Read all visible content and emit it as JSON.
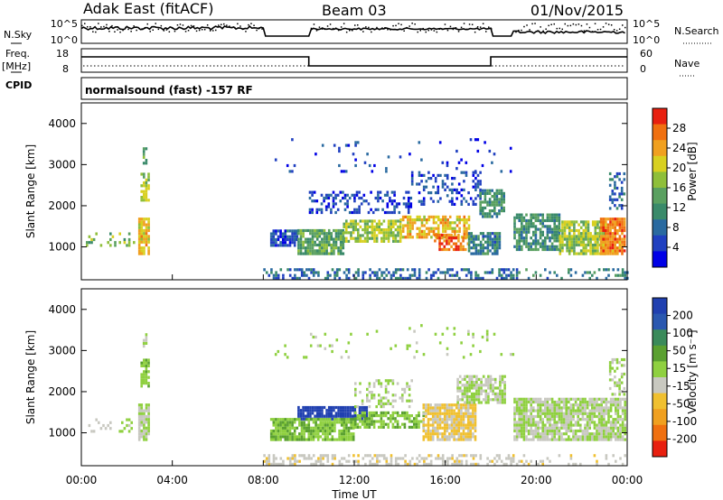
{
  "header": {
    "station": "Adak East (fitACF)",
    "beam": "Beam 03",
    "date": "01/Nov/2015",
    "nsky_label": "N.Sky",
    "nsearch_label": "N.Search",
    "freq_label": "Freq.",
    "freq_unit": "[MHz]",
    "nave_label": "Nave",
    "cpid_label": "CPID",
    "cpid_value": "normalsound (fast) -157 RF",
    "noise_ticks_left": [
      "10^5",
      "10^0"
    ],
    "noise_ticks_right": [
      "10^5",
      "10^0"
    ],
    "freq_ticks_left": [
      "18",
      "8"
    ],
    "nave_ticks_right": [
      "60",
      "0"
    ]
  },
  "colors": {
    "power_scale": [
      "#0000e6",
      "#2040c0",
      "#2a6aa0",
      "#3a8a6a",
      "#5aa060",
      "#8fbf3a",
      "#d8d020",
      "#f0a020",
      "#f07010",
      "#e82010"
    ],
    "velocity_scale": [
      "#2040b0",
      "#2a58b0",
      "#3a8a5a",
      "#5aa030",
      "#8fd040",
      "#c8c8c0",
      "#f0c030",
      "#f0a020",
      "#f07010",
      "#e82010"
    ]
  },
  "chart_data": [
    {
      "type": "heatmap",
      "parameter": "Power",
      "ylabel": "Slant Range [km]",
      "ylim": [
        200,
        4500
      ],
      "yticks": [
        "1000",
        "2000",
        "3000",
        "4000"
      ],
      "colorbar_label": "Power [dB]",
      "colorbar_ticks": [
        "4",
        "8",
        "12",
        "16",
        "20",
        "24",
        "28"
      ],
      "colorbar_range": [
        0,
        32
      ],
      "regions": [
        {
          "t0": 0.2,
          "t1": 2.3,
          "r0": 1000,
          "r1": 1300,
          "v": 16,
          "d": 0.25
        },
        {
          "t0": 2.5,
          "t1": 3.0,
          "r0": 800,
          "r1": 1700,
          "v": 22,
          "d": 0.9
        },
        {
          "t0": 2.6,
          "t1": 2.95,
          "r0": 2100,
          "r1": 2800,
          "v": 18,
          "d": 0.7
        },
        {
          "t0": 2.7,
          "t1": 2.9,
          "r0": 3000,
          "r1": 3400,
          "v": 14,
          "d": 0.5
        },
        {
          "t0": 8.3,
          "t1": 9.5,
          "r0": 1000,
          "r1": 1400,
          "v": 6,
          "d": 0.8
        },
        {
          "t0": 9.5,
          "t1": 11.5,
          "r0": 800,
          "r1": 1400,
          "v": 14,
          "d": 0.85
        },
        {
          "t0": 11.5,
          "t1": 14.0,
          "r0": 1100,
          "r1": 1600,
          "v": 18,
          "d": 0.75
        },
        {
          "t0": 10.0,
          "t1": 14.5,
          "r0": 1800,
          "r1": 2300,
          "v": 5,
          "d": 0.35
        },
        {
          "t0": 14.0,
          "t1": 17.0,
          "r0": 1200,
          "r1": 1700,
          "v": 22,
          "d": 0.7
        },
        {
          "t0": 14.5,
          "t1": 17.5,
          "r0": 2000,
          "r1": 2800,
          "v": 5,
          "d": 0.3
        },
        {
          "t0": 15.5,
          "t1": 17.0,
          "r0": 900,
          "r1": 1300,
          "v": 27,
          "d": 0.6
        },
        {
          "t0": 17.0,
          "t1": 18.4,
          "r0": 800,
          "r1": 1300,
          "v": 10,
          "d": 0.75
        },
        {
          "t0": 17.5,
          "t1": 18.6,
          "r0": 1700,
          "r1": 2400,
          "v": 12,
          "d": 0.75
        },
        {
          "t0": 19.0,
          "t1": 21.0,
          "r0": 900,
          "r1": 1800,
          "v": 12,
          "d": 0.75
        },
        {
          "t0": 21.0,
          "t1": 23.0,
          "r0": 800,
          "r1": 1600,
          "v": 18,
          "d": 0.8
        },
        {
          "t0": 22.8,
          "t1": 23.9,
          "r0": 800,
          "r1": 1700,
          "v": 26,
          "d": 0.9
        },
        {
          "t0": 23.2,
          "t1": 23.9,
          "r0": 1900,
          "r1": 2800,
          "v": 8,
          "d": 0.45
        },
        {
          "t0": 8.0,
          "t1": 19.0,
          "r0": 200,
          "r1": 450,
          "v": 8,
          "d": 0.45
        },
        {
          "t0": 19.0,
          "t1": 24.0,
          "r0": 200,
          "r1": 450,
          "v": 10,
          "d": 0.2
        },
        {
          "t0": 8.5,
          "t1": 19.0,
          "r0": 2800,
          "r1": 3600,
          "v": 5,
          "d": 0.04
        }
      ]
    },
    {
      "type": "heatmap",
      "parameter": "Velocity",
      "ylabel": "Slant Range [km]",
      "ylim": [
        200,
        4500
      ],
      "yticks": [
        "1000",
        "2000",
        "3000",
        "4000"
      ],
      "colorbar_label": "Velocity [m s⁻¹]",
      "colorbar_ticks": [
        "200",
        "100",
        "50",
        "15",
        "-15",
        "-50",
        "-100",
        "-200"
      ],
      "colorbar_range": [
        -250,
        250
      ],
      "regions": [
        {
          "t0": 0.2,
          "t1": 2.3,
          "r0": 1000,
          "r1": 1300,
          "v": 0,
          "d": 0.25
        },
        {
          "t0": 2.5,
          "t1": 3.0,
          "r0": 800,
          "r1": 1700,
          "v": 0,
          "d": 0.9
        },
        {
          "t0": 2.6,
          "t1": 2.95,
          "r0": 2100,
          "r1": 2800,
          "v": 40,
          "d": 0.7
        },
        {
          "t0": 2.7,
          "t1": 2.9,
          "r0": 3000,
          "r1": 3400,
          "v": 0,
          "d": 0.5
        },
        {
          "t0": 9.5,
          "t1": 12.5,
          "r0": 1300,
          "r1": 1600,
          "v": 230,
          "d": 0.9
        },
        {
          "t0": 8.3,
          "t1": 12.0,
          "r0": 800,
          "r1": 1300,
          "v": 40,
          "d": 0.85
        },
        {
          "t0": 12.0,
          "t1": 15.0,
          "r0": 1100,
          "r1": 1500,
          "v": 40,
          "d": 0.7
        },
        {
          "t0": 12.0,
          "t1": 14.5,
          "r0": 1600,
          "r1": 2300,
          "v": 0,
          "d": 0.3
        },
        {
          "t0": 15.0,
          "t1": 17.3,
          "r0": 800,
          "r1": 1700,
          "v": -60,
          "d": 0.85
        },
        {
          "t0": 16.5,
          "t1": 18.6,
          "r0": 1700,
          "r1": 2400,
          "v": 0,
          "d": 0.8
        },
        {
          "t0": 19.0,
          "t1": 23.9,
          "r0": 800,
          "r1": 1800,
          "v": 0,
          "d": 0.85
        },
        {
          "t0": 23.2,
          "t1": 23.9,
          "r0": 1900,
          "r1": 2800,
          "v": 0,
          "d": 0.45
        },
        {
          "t0": 8.0,
          "t1": 19.0,
          "r0": 200,
          "r1": 450,
          "v": -30,
          "d": 0.45
        },
        {
          "t0": 19.0,
          "t1": 24.0,
          "r0": 200,
          "r1": 450,
          "v": -30,
          "d": 0.2
        },
        {
          "t0": 8.5,
          "t1": 19.0,
          "r0": 2800,
          "r1": 3600,
          "v": 20,
          "d": 0.04
        }
      ]
    }
  ],
  "time_axis": {
    "label": "Time UT",
    "range": [
      0,
      24
    ],
    "ticks": [
      "00:00",
      "04:00",
      "08:00",
      "12:00",
      "16:00",
      "20:00",
      "00:00"
    ]
  }
}
